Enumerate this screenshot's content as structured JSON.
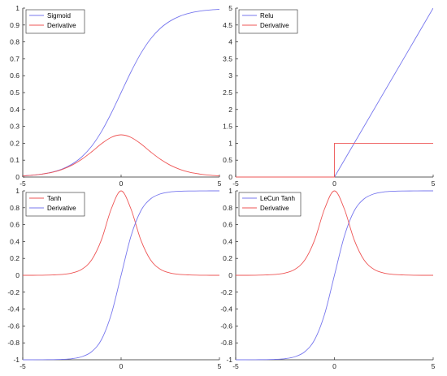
{
  "chart_data": [
    {
      "type": "line",
      "xlim": [
        -5,
        5
      ],
      "ylim": [
        0,
        1
      ],
      "x_ticks": [
        "-5",
        "0",
        "5"
      ],
      "y_ticks": [
        "0",
        "0.1",
        "0.2",
        "0.3",
        "0.4",
        "0.5",
        "0.6",
        "0.7",
        "0.8",
        "0.9",
        "1"
      ],
      "grid": false,
      "legend_position": "top-left",
      "series": [
        {
          "name": "Sigmoid",
          "color": "#7777ee",
          "x": [
            -5,
            -4.5,
            -4,
            -3.5,
            -3,
            -2.5,
            -2,
            -1.5,
            -1,
            -0.5,
            0,
            0.5,
            1,
            1.5,
            2,
            2.5,
            3,
            3.5,
            4,
            4.5,
            5
          ],
          "y": [
            0.0067,
            0.011,
            0.018,
            0.029,
            0.047,
            0.076,
            0.119,
            0.182,
            0.269,
            0.378,
            0.5,
            0.622,
            0.731,
            0.818,
            0.881,
            0.924,
            0.953,
            0.971,
            0.982,
            0.989,
            0.993
          ]
        },
        {
          "name": "Derivative",
          "color": "#ee5555",
          "x": [
            -5,
            -4.5,
            -4,
            -3.5,
            -3,
            -2.5,
            -2,
            -1.5,
            -1,
            -0.5,
            0,
            0.5,
            1,
            1.5,
            2,
            2.5,
            3,
            3.5,
            4,
            4.5,
            5
          ],
          "y": [
            0.0066,
            0.011,
            0.018,
            0.028,
            0.045,
            0.07,
            0.105,
            0.149,
            0.197,
            0.235,
            0.25,
            0.235,
            0.197,
            0.149,
            0.105,
            0.07,
            0.045,
            0.028,
            0.018,
            0.011,
            0.0066
          ]
        }
      ]
    },
    {
      "type": "line",
      "xlim": [
        -5,
        5
      ],
      "ylim": [
        0,
        5
      ],
      "x_ticks": [
        "-5",
        "0",
        "5"
      ],
      "y_ticks": [
        "0",
        "0.5",
        "1",
        "1.5",
        "2",
        "2.5",
        "3",
        "3.5",
        "4",
        "4.5",
        "5"
      ],
      "grid": false,
      "legend_position": "top-left",
      "series": [
        {
          "name": "Relu",
          "color": "#7777ee",
          "x": [
            -5,
            0,
            5
          ],
          "y": [
            0,
            0,
            5
          ]
        },
        {
          "name": "Derivative",
          "color": "#ee5555",
          "x": [
            -5,
            0,
            0,
            5
          ],
          "y": [
            0,
            0,
            1,
            1
          ]
        }
      ]
    },
    {
      "type": "line",
      "xlim": [
        -5,
        5
      ],
      "ylim": [
        -1,
        1
      ],
      "x_ticks": [
        "-5",
        "0",
        "5"
      ],
      "y_ticks": [
        "-1",
        "-0.8",
        "-0.6",
        "-0.4",
        "-0.2",
        "0",
        "0.2",
        "0.4",
        "0.6",
        "0.8",
        "1"
      ],
      "grid": false,
      "legend_position": "top-left",
      "series": [
        {
          "name": "Tanh",
          "color": "#ee5555",
          "x": [
            -5,
            -4.5,
            -4,
            -3.5,
            -3,
            -2.5,
            -2,
            -1.5,
            -1,
            -0.5,
            0,
            0.5,
            1,
            1.5,
            2,
            2.5,
            3,
            3.5,
            4,
            4.5,
            5
          ],
          "y": [
            0,
            0,
            0.001,
            0.004,
            0.01,
            0.027,
            0.071,
            0.181,
            0.42,
            0.786,
            1,
            0.786,
            0.42,
            0.181,
            0.071,
            0.027,
            0.01,
            0.004,
            0.001,
            0,
            0
          ]
        },
        {
          "name": "Derivative",
          "color": "#7777ee",
          "x": [
            -5,
            -4.5,
            -4,
            -3.5,
            -3,
            -2.5,
            -2,
            -1.5,
            -1,
            -0.5,
            0,
            0.5,
            1,
            1.5,
            2,
            2.5,
            3,
            3.5,
            4,
            4.5,
            5
          ],
          "y": [
            -1,
            -1,
            -0.999,
            -0.998,
            -0.995,
            -0.987,
            -0.964,
            -0.905,
            -0.762,
            -0.462,
            0,
            0.462,
            0.762,
            0.905,
            0.964,
            0.987,
            0.995,
            0.998,
            0.999,
            1,
            1
          ]
        }
      ]
    },
    {
      "type": "line",
      "xlim": [
        -5,
        5
      ],
      "ylim": [
        -1,
        1
      ],
      "x_ticks": [
        "-5",
        "0",
        "5"
      ],
      "y_ticks": [
        "-1",
        "-0.8",
        "-0.6",
        "-0.4",
        "-0.2",
        "0",
        "0.2",
        "0.4",
        "0.6",
        "0.8",
        "1"
      ],
      "grid": false,
      "legend_position": "top-left",
      "series": [
        {
          "name": "LeCun Tanh",
          "color": "#7777ee",
          "x": [
            -5,
            -4.5,
            -4,
            -3.5,
            -3,
            -2.5,
            -2,
            -1.5,
            -1,
            -0.5,
            0,
            0.5,
            1,
            1.5,
            2,
            2.5,
            3,
            3.5,
            4,
            4.5,
            5
          ],
          "y": [
            -1,
            -1,
            -0.999,
            -0.998,
            -0.995,
            -0.987,
            -0.964,
            -0.905,
            -0.762,
            -0.462,
            0,
            0.462,
            0.762,
            0.905,
            0.964,
            0.987,
            0.995,
            0.998,
            0.999,
            1,
            1
          ]
        },
        {
          "name": "Derivative",
          "color": "#ee5555",
          "x": [
            -5,
            -4.5,
            -4,
            -3.5,
            -3,
            -2.5,
            -2,
            -1.5,
            -1,
            -0.5,
            0,
            0.5,
            1,
            1.5,
            2,
            2.5,
            3,
            3.5,
            4,
            4.5,
            5
          ],
          "y": [
            0,
            0,
            0.001,
            0.004,
            0.01,
            0.027,
            0.071,
            0.181,
            0.42,
            0.786,
            1,
            0.786,
            0.42,
            0.181,
            0.071,
            0.027,
            0.01,
            0.004,
            0.001,
            0,
            0
          ]
        }
      ]
    }
  ]
}
